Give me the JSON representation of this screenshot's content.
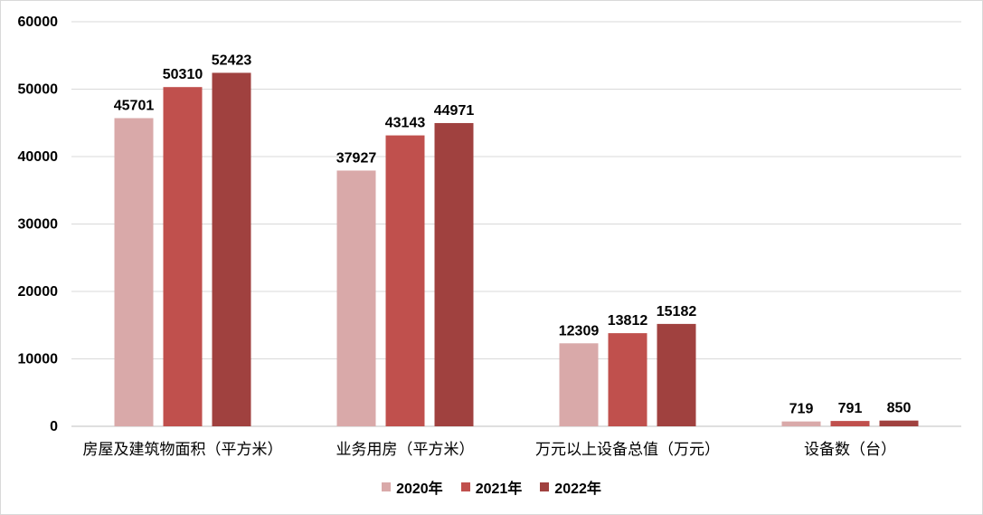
{
  "chart_data": {
    "type": "bar",
    "categories": [
      "房屋及建筑物面积（平方米）",
      "业务用房（平方米）",
      "万元以上设备总值（万元）",
      "设备数（台）"
    ],
    "series": [
      {
        "name": "2020年",
        "values": [
          45701,
          37927,
          12309,
          719
        ],
        "color": "#d9a9a9"
      },
      {
        "name": "2021年",
        "values": [
          50310,
          43143,
          13812,
          791
        ],
        "color": "#c0504d"
      },
      {
        "name": "2022年",
        "values": [
          52423,
          44971,
          15182,
          850
        ],
        "color": "#a0413f"
      }
    ],
    "y_ticks": [
      "0",
      "10000",
      "20000",
      "30000",
      "40000",
      "50000",
      "60000"
    ],
    "ylim": [
      0,
      60000
    ],
    "grid": true,
    "legend_position": "bottom",
    "title": "",
    "xlabel": "",
    "ylabel": ""
  }
}
